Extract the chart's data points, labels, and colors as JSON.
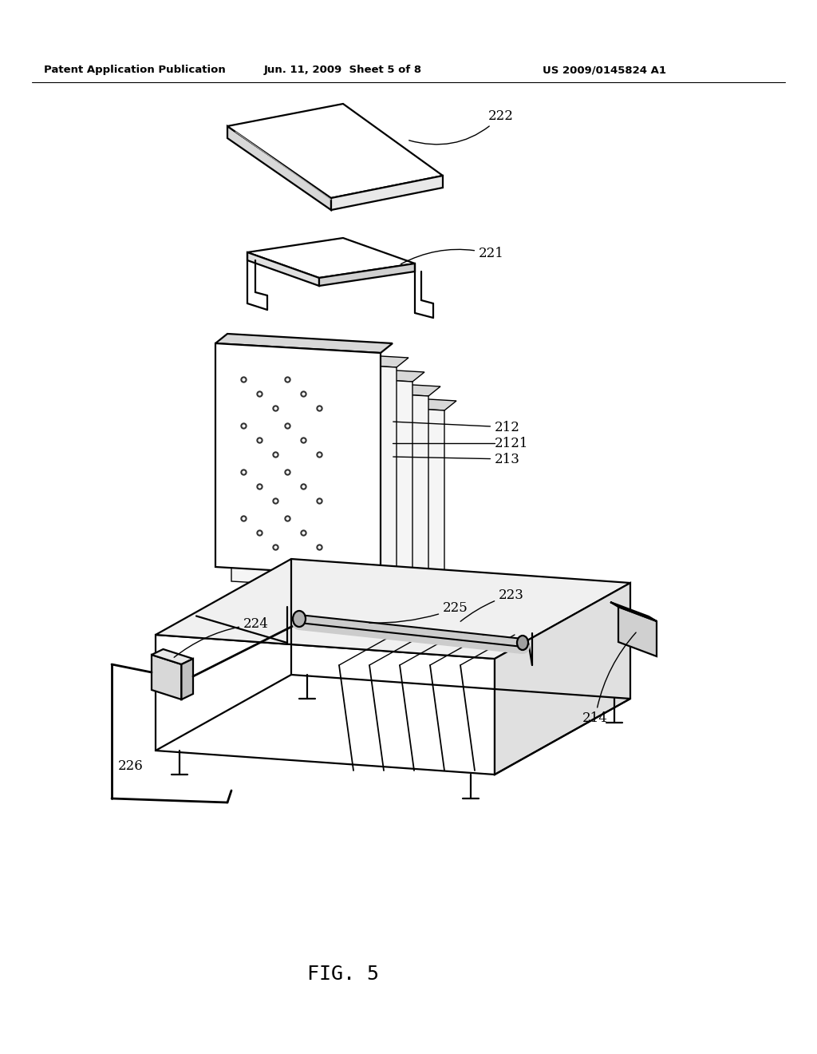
{
  "background_color": "#ffffff",
  "header_left": "Patent Application Publication",
  "header_center": "Jun. 11, 2009  Sheet 5 of 8",
  "header_right": "US 2009/0145824 A1",
  "figure_caption": "FIG. 5"
}
